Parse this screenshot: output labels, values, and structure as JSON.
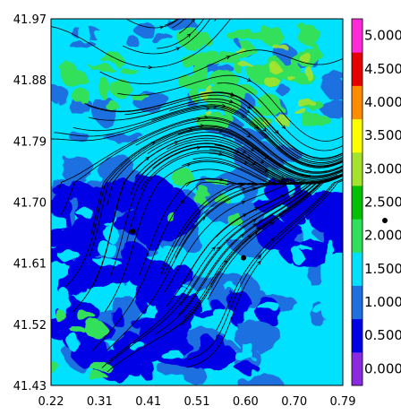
{
  "chart_data": {
    "type": "heatmap",
    "title": "",
    "xlabel": "",
    "ylabel": "",
    "xlim": [
      0.22,
      0.79
    ],
    "ylim": [
      41.43,
      41.97
    ],
    "x_ticks": [
      "0.22",
      "0.31",
      "0.41",
      "0.51",
      "0.60",
      "0.70",
      "0.79"
    ],
    "y_ticks": [
      "41.97",
      "41.88",
      "41.79",
      "41.70",
      "41.61",
      "41.52",
      "41.43"
    ],
    "colorbar": {
      "range": [
        0.0,
        5.5
      ],
      "labels": [
        "0.000",
        "0.500",
        "1.000",
        "1.500",
        "2.000",
        "2.500",
        "3.000",
        "3.500",
        "4.000",
        "4.500",
        "5.000"
      ],
      "colors": [
        "#8a2be2",
        "#0000e6",
        "#1f6fe0",
        "#00e0ff",
        "#30e05a",
        "#00c000",
        "#a4e32d",
        "#ffff00",
        "#ff8c00",
        "#e60000",
        "#ff2ad8"
      ]
    },
    "markers": [
      {
        "x": 0.38,
        "y": 41.657
      },
      {
        "x": 0.596,
        "y": 41.618
      }
    ],
    "field": {
      "dominant": "1.000-1.500",
      "low_region": "lower-left",
      "high_region": "upper-center"
    }
  }
}
